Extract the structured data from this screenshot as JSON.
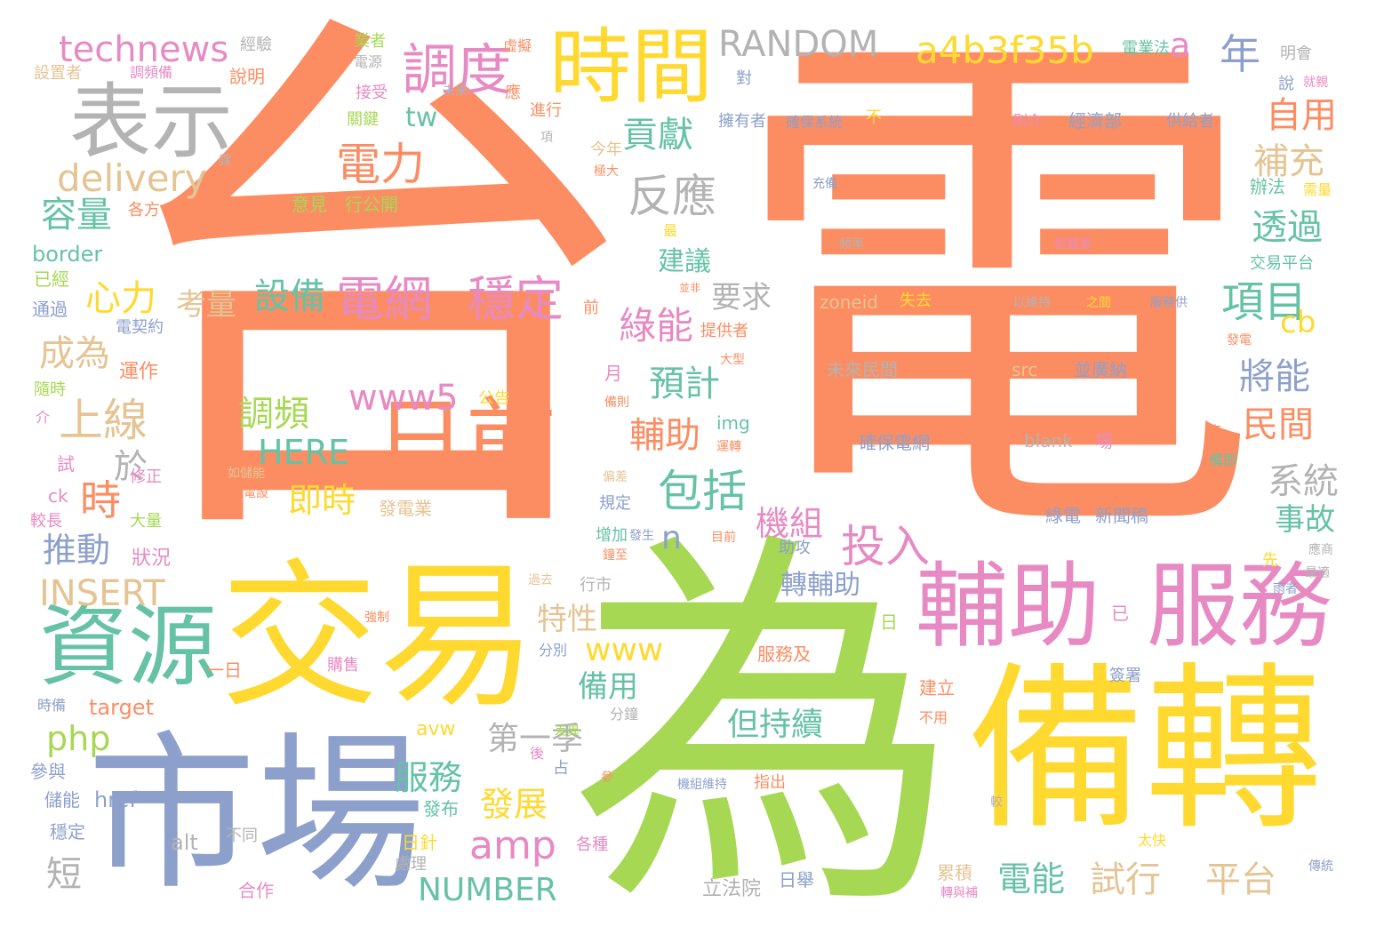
{
  "palette": {
    "orange": "#fc8d62",
    "green": "#a6d854",
    "yellow": "#ffd92f",
    "blue": "#8da0cb",
    "pink": "#e78ac3",
    "teal": "#66c2a5",
    "tan": "#e5c494",
    "gray": "#b3b3b3"
  },
  "words": [
    {
      "text": "台",
      "color": "#fc8d62"
    },
    {
      "text": "電",
      "color": "#fc8d62"
    },
    {
      "text": "為",
      "color": "#a6d854"
    },
    {
      "text": "備轉",
      "color": "#ffd92f"
    },
    {
      "text": "市場",
      "color": "#8da0cb"
    },
    {
      "text": "交易",
      "color": "#ffd92f"
    },
    {
      "text": "服務",
      "color": "#e78ac3"
    },
    {
      "text": "輔助",
      "color": "#e78ac3"
    },
    {
      "text": "資源",
      "color": "#66c2a5"
    },
    {
      "text": "日前",
      "color": "#fc8d62"
    },
    {
      "text": "表示",
      "color": "#b3b3b3"
    },
    {
      "text": "時間",
      "color": "#ffd92f"
    },
    {
      "text": "調度",
      "color": "#e78ac3"
    },
    {
      "text": "a4b3f35b",
      "color": "#ffd92f"
    },
    {
      "text": "RANDOM",
      "color": "#b3b3b3"
    },
    {
      "text": "technews",
      "color": "#e78ac3"
    },
    {
      "text": "delivery",
      "color": "#e5c494"
    },
    {
      "text": "電力",
      "color": "#fc8d62"
    },
    {
      "text": "電網",
      "color": "#e78ac3"
    },
    {
      "text": "穩定",
      "color": "#e78ac3"
    },
    {
      "text": "反應",
      "color": "#b3b3b3"
    },
    {
      "text": "貢獻",
      "color": "#66c2a5"
    },
    {
      "text": "項目",
      "color": "#66c2a5"
    },
    {
      "text": "透過",
      "color": "#66c2a5"
    },
    {
      "text": "自用",
      "color": "#fc8d62"
    },
    {
      "text": "補充",
      "color": "#e5c494"
    },
    {
      "text": "年",
      "color": "#8da0cb"
    },
    {
      "text": "a",
      "color": "#e78ac3"
    },
    {
      "text": "容量",
      "color": "#66c2a5"
    },
    {
      "text": "上線",
      "color": "#e5c494"
    },
    {
      "text": "設備",
      "color": "#66c2a5"
    },
    {
      "text": "心力",
      "color": "#ffd92f"
    },
    {
      "text": "考量",
      "color": "#e5c494"
    },
    {
      "text": "成為",
      "color": "#e5c494"
    },
    {
      "text": "時",
      "color": "#fc8d62"
    },
    {
      "text": "推動",
      "color": "#8da0cb"
    },
    {
      "text": "INSERT",
      "color": "#e5c494"
    },
    {
      "text": "php",
      "color": "#a6d854"
    },
    {
      "text": "調頻",
      "color": "#a6d854"
    },
    {
      "text": "HERE",
      "color": "#66c2a5"
    },
    {
      "text": "即時",
      "color": "#ffd92f"
    },
    {
      "text": "www5",
      "color": "#e78ac3"
    },
    {
      "text": "包括",
      "color": "#66c2a5"
    },
    {
      "text": "投入",
      "color": "#e78ac3"
    },
    {
      "text": "綠能",
      "color": "#e78ac3"
    },
    {
      "text": "預計",
      "color": "#66c2a5"
    },
    {
      "text": "輔助",
      "color": "#fc8d62"
    },
    {
      "text": "機組",
      "color": "#e78ac3"
    },
    {
      "text": "將能",
      "color": "#8da0cb"
    },
    {
      "text": "民間",
      "color": "#fc8d62"
    },
    {
      "text": "系統",
      "color": "#b3b3b3"
    },
    {
      "text": "事故",
      "color": "#66c2a5"
    },
    {
      "text": "cb",
      "color": "#ffd92f"
    },
    {
      "text": "amp",
      "color": "#e78ac3"
    },
    {
      "text": "www",
      "color": "#ffd92f"
    },
    {
      "text": "特性",
      "color": "#e5c494"
    },
    {
      "text": "備用",
      "color": "#66c2a5"
    },
    {
      "text": "第一季",
      "color": "#b3b3b3"
    },
    {
      "text": "但持續",
      "color": "#66c2a5"
    },
    {
      "text": "服務",
      "color": "#66c2a5"
    },
    {
      "text": "發展",
      "color": "#ffd92f"
    },
    {
      "text": "NUMBER",
      "color": "#66c2a5"
    },
    {
      "text": "電能",
      "color": "#66c2a5"
    },
    {
      "text": "試行",
      "color": "#e5c494"
    },
    {
      "text": "平台",
      "color": "#e5c494"
    },
    {
      "text": "轉輔助",
      "color": "#8da0cb"
    },
    {
      "text": "tw",
      "color": "#66c2a5"
    },
    {
      "text": "建議",
      "color": "#66c2a5"
    },
    {
      "text": "要求",
      "color": "#b3b3b3"
    },
    {
      "text": "n",
      "color": "#8da0cb"
    },
    {
      "text": "於",
      "color": "#b3b3b3"
    },
    {
      "text": "短",
      "color": "#b3b3b3"
    },
    {
      "text": "border",
      "color": "#66c2a5"
    },
    {
      "text": "已經",
      "color": "#a6d854"
    },
    {
      "text": "通過",
      "color": "#8da0cb"
    },
    {
      "text": "電契約",
      "color": "#8da0cb"
    },
    {
      "text": "運作",
      "color": "#fc8d62"
    },
    {
      "text": "隨時",
      "color": "#a6d854"
    },
    {
      "text": "狀況",
      "color": "#e78ac3"
    },
    {
      "text": "修正",
      "color": "#e78ac3"
    },
    {
      "text": "大量",
      "color": "#a6d854"
    },
    {
      "text": "較長",
      "color": "#e78ac3"
    },
    {
      "text": "ck",
      "color": "#e78ac3"
    },
    {
      "text": "試",
      "color": "#e78ac3"
    },
    {
      "text": "介",
      "color": "#e78ac3"
    },
    {
      "text": "target",
      "color": "#fc8d62"
    },
    {
      "text": "時備",
      "color": "#8da0cb"
    },
    {
      "text": "參與",
      "color": "#8da0cb"
    },
    {
      "text": "儲能",
      "color": "#8da0cb"
    },
    {
      "text": "href",
      "color": "#8da0cb"
    },
    {
      "text": "穩定",
      "color": "#8da0cb"
    },
    {
      "text": "alt",
      "color": "#b3b3b3"
    },
    {
      "text": "不同",
      "color": "#b3b3b3"
    },
    {
      "text": "合作",
      "color": "#e78ac3"
    },
    {
      "text": "處理",
      "color": "#b3b3b3"
    },
    {
      "text": "日針",
      "color": "#ffd92f"
    },
    {
      "text": "發布",
      "color": "#66c2a5"
    },
    {
      "text": "各種",
      "color": "#e78ac3"
    },
    {
      "text": "經驗",
      "color": "#b3b3b3"
    },
    {
      "text": "說明",
      "color": "#fc8d62"
    },
    {
      "text": "設置者",
      "color": "#e5c494"
    },
    {
      "text": "調頻備",
      "color": "#e78ac3"
    },
    {
      "text": "課",
      "color": "#b3b3b3"
    },
    {
      "text": "意見",
      "color": "#a6d854"
    },
    {
      "text": "行公開",
      "color": "#a6d854"
    },
    {
      "text": "年底",
      "color": "#fc8d62"
    },
    {
      "text": "各方",
      "color": "#fc8d62"
    },
    {
      "text": "業者",
      "color": "#a6d854"
    },
    {
      "text": "電源",
      "color": "#b3b3b3"
    },
    {
      "text": "虛擬",
      "color": "#fc8d62"
    },
    {
      "text": "接受",
      "color": "#e78ac3"
    },
    {
      "text": "未來",
      "color": "#b3b3b3"
    },
    {
      "text": "應",
      "color": "#fc8d62"
    },
    {
      "text": "關鍵",
      "color": "#a6d854"
    },
    {
      "text": "進行",
      "color": "#fc8d62"
    },
    {
      "text": "項",
      "color": "#b3b3b3"
    },
    {
      "text": "今年",
      "color": "#e5c494"
    },
    {
      "text": "極大",
      "color": "#fc8d62"
    },
    {
      "text": "最",
      "color": "#ffd92f"
    },
    {
      "text": "並非",
      "color": "#fc8d62"
    },
    {
      "text": "前",
      "color": "#fc8d62"
    },
    {
      "text": "提供者",
      "color": "#fc8d62"
    },
    {
      "text": "大型",
      "color": "#fc8d62"
    },
    {
      "text": "月",
      "color": "#e78ac3"
    },
    {
      "text": "公告",
      "color": "#ffd92f"
    },
    {
      "text": "備則",
      "color": "#fc8d62"
    },
    {
      "text": "img",
      "color": "#66c2a5"
    },
    {
      "text": "運轉",
      "color": "#fc8d62"
    },
    {
      "text": "如儲能",
      "color": "#e5c494"
    },
    {
      "text": "發電設",
      "color": "#fc8d62"
    },
    {
      "text": "發電業",
      "color": "#e5c494"
    },
    {
      "text": "偏差",
      "color": "#e5c494"
    },
    {
      "text": "規定",
      "color": "#8da0cb"
    },
    {
      "text": "增加",
      "color": "#66c2a5"
    },
    {
      "text": "發生",
      "color": "#8da0cb"
    },
    {
      "text": "鐘至",
      "color": "#fc8d62"
    },
    {
      "text": "目前",
      "color": "#fc8d62"
    },
    {
      "text": "助攻",
      "color": "#8da0cb"
    },
    {
      "text": "行市",
      "color": "#b3b3b3"
    },
    {
      "text": "過去",
      "color": "#e5c494"
    },
    {
      "text": "強制",
      "color": "#fc8d62"
    },
    {
      "text": "分別",
      "color": "#8da0cb"
    },
    {
      "text": "一日",
      "color": "#fc8d62"
    },
    {
      "text": "購售",
      "color": "#e78ac3"
    },
    {
      "text": "服務及",
      "color": "#fc8d62"
    },
    {
      "text": "日",
      "color": "#a6d854"
    },
    {
      "text": "分鐘",
      "color": "#b3b3b3"
    },
    {
      "text": "avw",
      "color": "#ffd92f"
    },
    {
      "text": "後",
      "color": "#e78ac3"
    },
    {
      "text": "占",
      "color": "#8da0cb"
    },
    {
      "text": "參",
      "color": "#fc8d62"
    },
    {
      "text": "差異",
      "color": "#a6d854"
    },
    {
      "text": "機組維持",
      "color": "#8da0cb"
    },
    {
      "text": "指出",
      "color": "#fc8d62"
    },
    {
      "text": "日舉",
      "color": "#8da0cb"
    },
    {
      "text": "立法院",
      "color": "#b3b3b3"
    },
    {
      "text": "累積",
      "color": "#e5c494"
    },
    {
      "text": "轉與補",
      "color": "#e78ac3"
    },
    {
      "text": "電業法",
      "color": "#66c2a5"
    },
    {
      "text": "明會",
      "color": "#b3b3b3"
    },
    {
      "text": "說",
      "color": "#8da0cb"
    },
    {
      "text": "就親",
      "color": "#e78ac3"
    },
    {
      "text": "對",
      "color": "#8da0cb"
    },
    {
      "text": "擁有者",
      "color": "#8da0cb"
    },
    {
      "text": "確保系統",
      "color": "#8da0cb"
    },
    {
      "text": "不",
      "color": "#ffd92f"
    },
    {
      "text": "則介",
      "color": "#e78ac3"
    },
    {
      "text": "經濟部",
      "color": "#8da0cb"
    },
    {
      "text": "供給者",
      "color": "#8da0cb"
    },
    {
      "text": "充備",
      "color": "#8da0cb"
    },
    {
      "text": "頻率",
      "color": "#b3b3b3"
    },
    {
      "text": "但業者",
      "color": "#e78ac3"
    },
    {
      "text": "辦法",
      "color": "#66c2a5"
    },
    {
      "text": "需量",
      "color": "#ffd92f"
    },
    {
      "text": "交易平台",
      "color": "#66c2a5"
    },
    {
      "text": "zoneid",
      "color": "#e5c494"
    },
    {
      "text": "失去",
      "color": "#ffd92f"
    },
    {
      "text": "以維持",
      "color": "#b3b3b3"
    },
    {
      "text": "之間",
      "color": "#ffd92f"
    },
    {
      "text": "服務供",
      "color": "#8da0cb"
    },
    {
      "text": "發電",
      "color": "#fc8d62"
    },
    {
      "text": "未來民間",
      "color": "#b3b3b3"
    },
    {
      "text": "src",
      "color": "#e5c494"
    },
    {
      "text": "並廣納",
      "color": "#8da0cb"
    },
    {
      "text": "秒",
      "color": "#fc8d62"
    },
    {
      "text": "確保電網",
      "color": "#8da0cb"
    },
    {
      "text": "blank",
      "color": "#b3b3b3"
    },
    {
      "text": "場",
      "color": "#e78ac3"
    },
    {
      "text": "來",
      "color": "#fc8d62"
    },
    {
      "text": "備即",
      "color": "#66c2a5"
    },
    {
      "text": "綠電",
      "color": "#8da0cb"
    },
    {
      "text": "新聞稿",
      "color": "#8da0cb"
    },
    {
      "text": "應商",
      "color": "#b3b3b3"
    },
    {
      "text": "先",
      "color": "#ffd92f"
    },
    {
      "text": "最適",
      "color": "#b3b3b3"
    },
    {
      "text": "雨者",
      "color": "#8da0cb"
    },
    {
      "text": "已",
      "color": "#e78ac3"
    },
    {
      "text": "建立",
      "color": "#fc8d62"
    },
    {
      "text": "簽署",
      "color": "#8da0cb"
    },
    {
      "text": "不用",
      "color": "#fc8d62"
    },
    {
      "text": "較",
      "color": "#b3b3b3"
    },
    {
      "text": "太快",
      "color": "#ffd92f"
    },
    {
      "text": "傳統",
      "color": "#8da0cb"
    }
  ]
}
